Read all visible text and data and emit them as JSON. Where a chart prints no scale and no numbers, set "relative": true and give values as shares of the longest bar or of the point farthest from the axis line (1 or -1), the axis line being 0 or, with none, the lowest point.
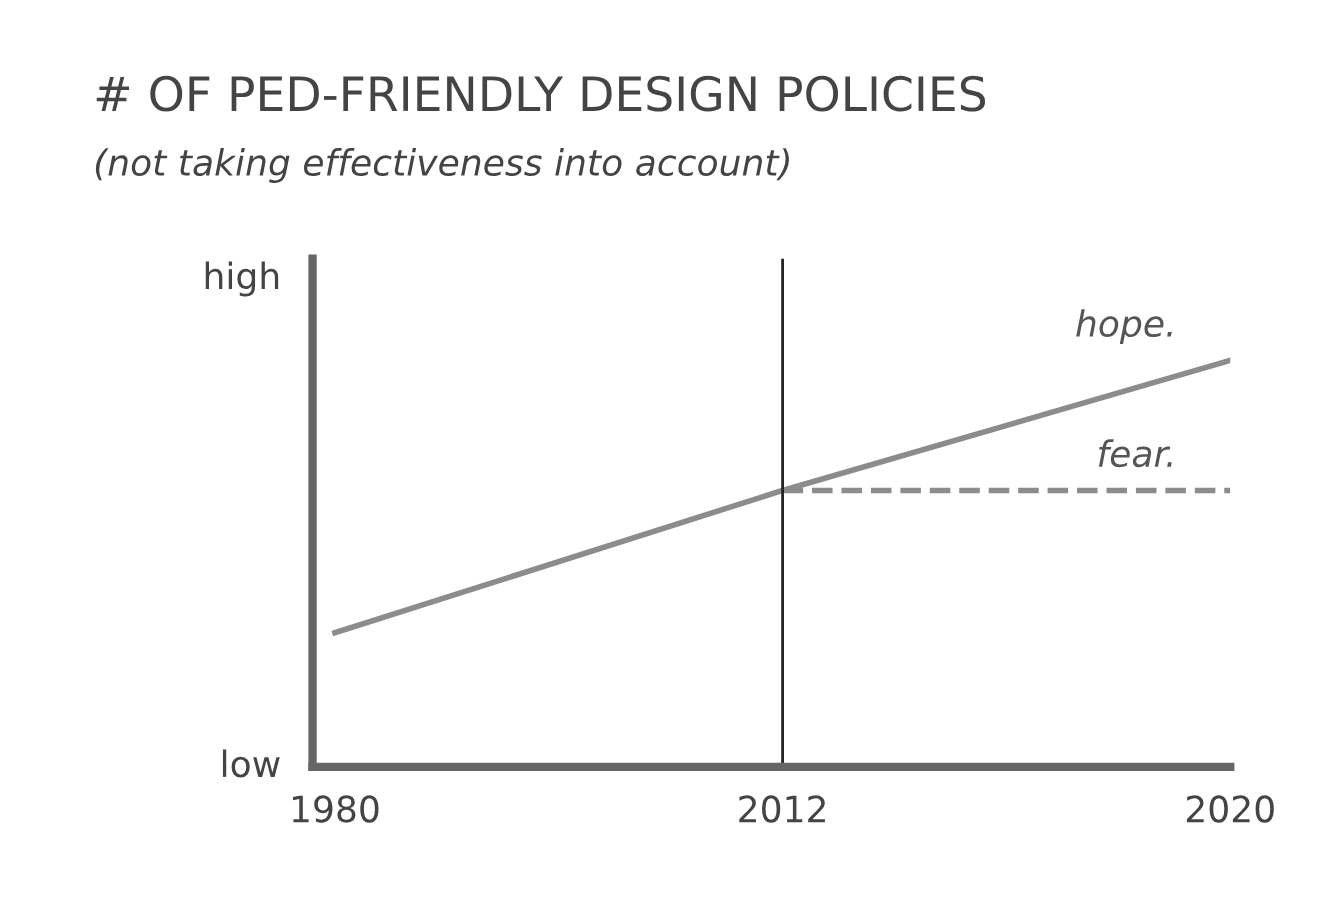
{
  "chart_data": {
    "type": "line",
    "title": "# OF PED-FRIENDLY DESIGN POLICIES",
    "subtitle": "(not taking effectiveness into account)",
    "categories": [
      "1980",
      "2012",
      "2020"
    ],
    "relative": true,
    "series": [
      {
        "name": "hope.",
        "color": "#8c8c8c",
        "values": [
          0.33,
          0.68,
          1
        ],
        "line_style": "solid"
      },
      {
        "name": "fear.",
        "color": "#8c8c8c",
        "values": [
          null,
          0.68,
          0.68
        ],
        "line_style": "dashed"
      }
    ],
    "ref_lines": [
      {
        "axis": "x",
        "value": "2012",
        "color": "#222222",
        "line_style": "solid"
      }
    ],
    "annotations": [
      "high",
      "low"
    ],
    "grid": false
  }
}
